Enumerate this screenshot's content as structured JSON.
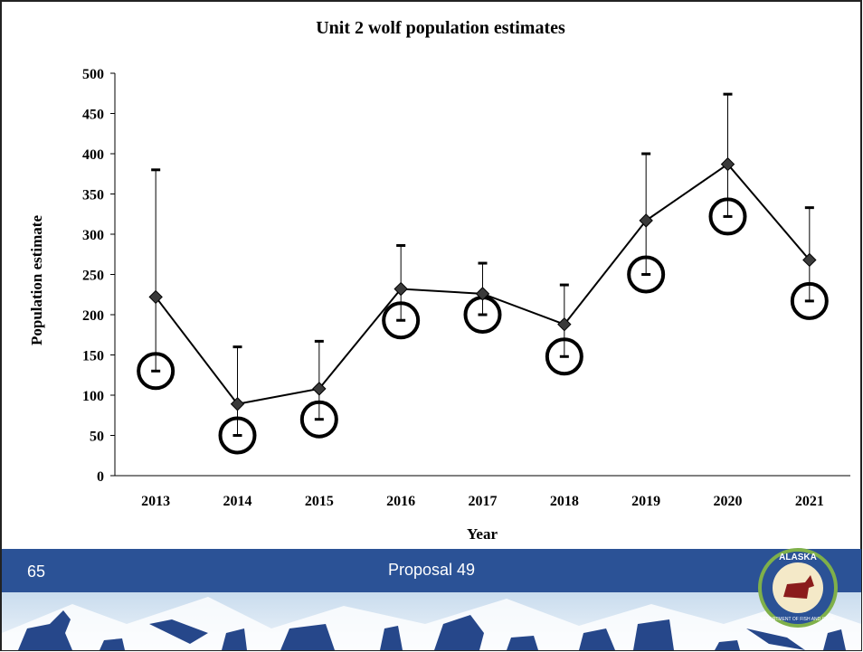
{
  "chart_data": {
    "type": "line",
    "title": "Unit 2 wolf population estimates",
    "x_label": "Year",
    "y_label": "Population estimate",
    "categories": [
      "2013",
      "2014",
      "2015",
      "2016",
      "2017",
      "2018",
      "2019",
      "2020",
      "2021"
    ],
    "values": [
      222,
      89,
      108,
      232,
      226,
      188,
      317,
      387,
      268
    ],
    "upper": [
      380,
      160,
      167,
      286,
      264,
      237,
      400,
      474,
      333
    ],
    "lower": [
      130,
      50,
      70,
      193,
      200,
      148,
      250,
      322,
      217
    ],
    "color": "#000000",
    "ylim": [
      0,
      500
    ],
    "yticks": [
      0,
      50,
      100,
      150,
      200,
      250,
      300,
      350,
      400,
      450,
      500
    ],
    "grid": false
  },
  "footer": {
    "slide_number": "65",
    "text": "Proposal 49"
  },
  "logo": {
    "top": "ALASKA",
    "bottom": "DEPARTMENT OF FISH AND GAME"
  }
}
